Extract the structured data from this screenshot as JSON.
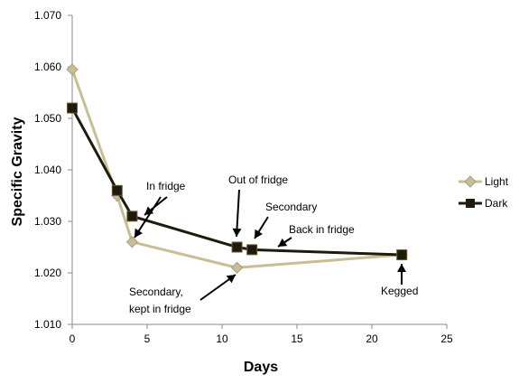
{
  "chart_data": {
    "type": "line",
    "title": "",
    "xlabel": "Days",
    "ylabel": "Specific Gravity",
    "xlim": [
      0,
      25
    ],
    "ylim": [
      1.01,
      1.07
    ],
    "x_ticks": [
      "0",
      "5",
      "10",
      "15",
      "20",
      "25"
    ],
    "y_ticks": [
      "1.010",
      "1.020",
      "1.030",
      "1.040",
      "1.050",
      "1.060",
      "1.070"
    ],
    "grid": false,
    "legend_position": "right",
    "series": [
      {
        "name": "Light",
        "color": "#c8be94",
        "marker": "diamond",
        "x": [
          0,
          3,
          4,
          11,
          22
        ],
        "y": [
          1.0595,
          1.035,
          1.026,
          1.021,
          1.0235
        ]
      },
      {
        "name": "Dark",
        "color": "#1f1a0e",
        "marker": "square",
        "x": [
          0,
          3,
          4,
          11,
          12,
          22
        ],
        "y": [
          1.052,
          1.036,
          1.031,
          1.025,
          1.0245,
          1.0235
        ]
      }
    ],
    "annotations": [
      {
        "text": "In fridge"
      },
      {
        "text": "Out of fridge"
      },
      {
        "text": "Secondary"
      },
      {
        "text": "Back in fridge"
      },
      {
        "text": "Secondary,"
      },
      {
        "text": "kept in fridge"
      },
      {
        "text": "Kegged"
      }
    ]
  }
}
